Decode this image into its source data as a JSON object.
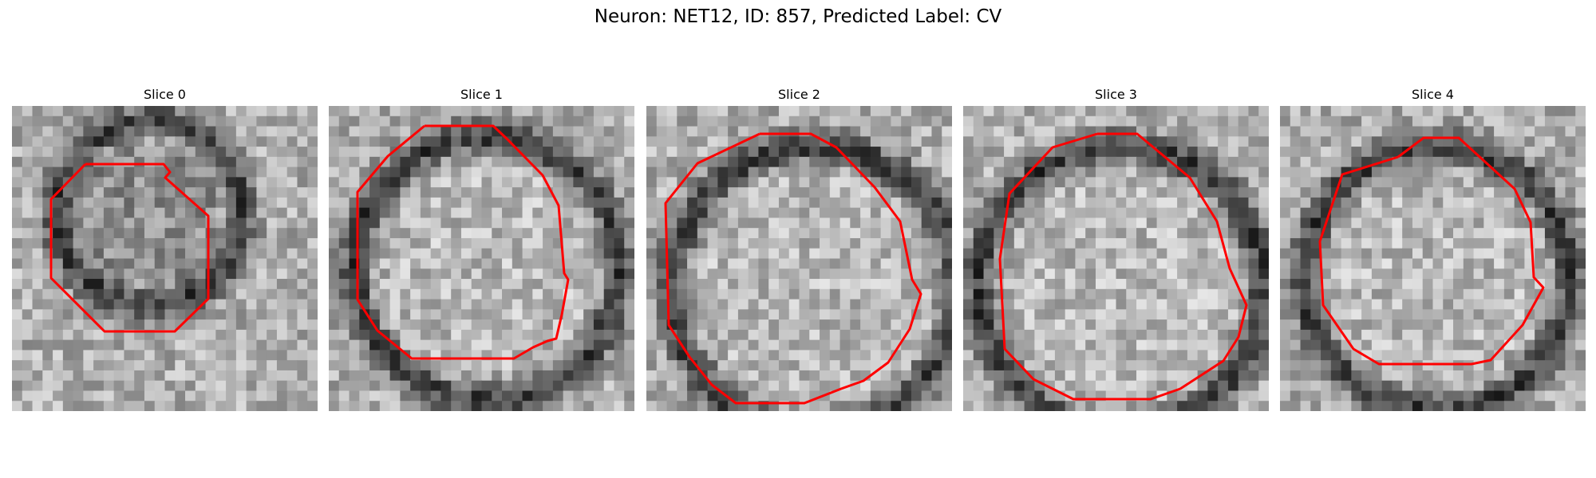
{
  "figure": {
    "title": "Neuron: NET12, ID: 857, Predicted Label: CV"
  },
  "panels": [
    {
      "title": "Slice 0",
      "image": "grayscale-em-slice-with-red-contour"
    },
    {
      "title": "Slice 1",
      "image": "grayscale-em-slice-with-red-contour"
    },
    {
      "title": "Slice 2",
      "image": "grayscale-em-slice-with-red-contour"
    },
    {
      "title": "Slice 3",
      "image": "grayscale-em-slice-with-red-contour"
    },
    {
      "title": "Slice 4",
      "image": "grayscale-em-slice-with-red-contour"
    }
  ],
  "colors": {
    "contour": "#ff0000"
  }
}
